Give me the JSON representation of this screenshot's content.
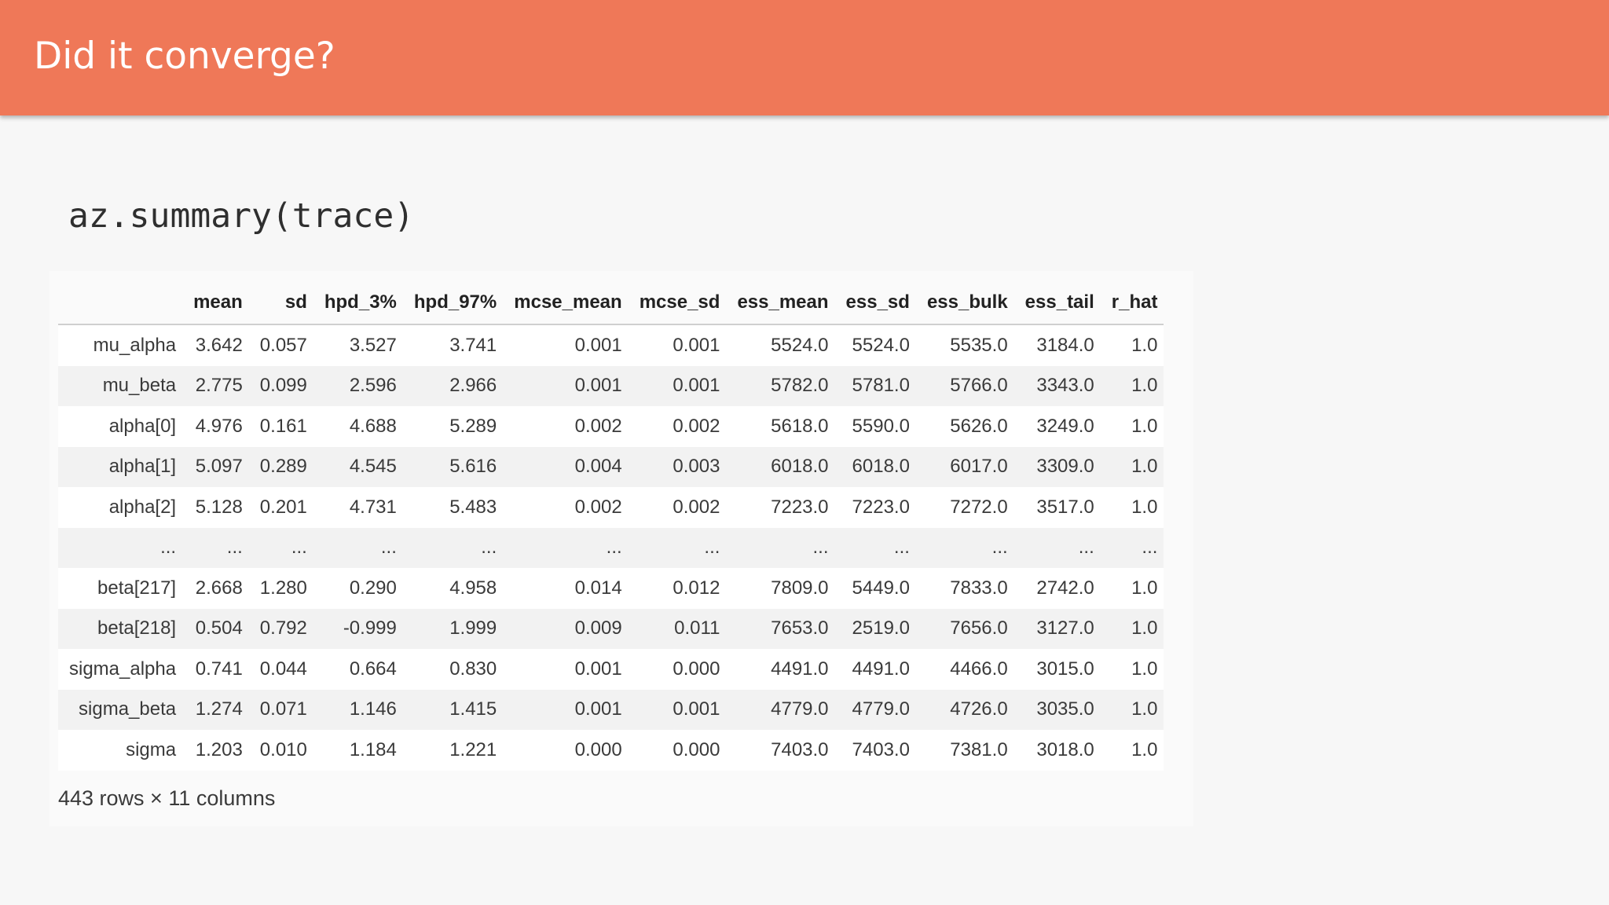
{
  "slide": {
    "title": "Did it converge?",
    "code": "az.summary(trace)",
    "header_color": "#ef7858"
  },
  "table": {
    "columns": [
      "",
      "mean",
      "sd",
      "hpd_3%",
      "hpd_97%",
      "mcse_mean",
      "mcse_sd",
      "ess_mean",
      "ess_sd",
      "ess_bulk",
      "ess_tail",
      "r_hat"
    ],
    "rows": [
      [
        "mu_alpha",
        "3.642",
        "0.057",
        "3.527",
        "3.741",
        "0.001",
        "0.001",
        "5524.0",
        "5524.0",
        "5535.0",
        "3184.0",
        "1.0"
      ],
      [
        "mu_beta",
        "2.775",
        "0.099",
        "2.596",
        "2.966",
        "0.001",
        "0.001",
        "5782.0",
        "5781.0",
        "5766.0",
        "3343.0",
        "1.0"
      ],
      [
        "alpha[0]",
        "4.976",
        "0.161",
        "4.688",
        "5.289",
        "0.002",
        "0.002",
        "5618.0",
        "5590.0",
        "5626.0",
        "3249.0",
        "1.0"
      ],
      [
        "alpha[1]",
        "5.097",
        "0.289",
        "4.545",
        "5.616",
        "0.004",
        "0.003",
        "6018.0",
        "6018.0",
        "6017.0",
        "3309.0",
        "1.0"
      ],
      [
        "alpha[2]",
        "5.128",
        "0.201",
        "4.731",
        "5.483",
        "0.002",
        "0.002",
        "7223.0",
        "7223.0",
        "7272.0",
        "3517.0",
        "1.0"
      ],
      [
        "...",
        "...",
        "...",
        "...",
        "...",
        "...",
        "...",
        "...",
        "...",
        "...",
        "...",
        "..."
      ],
      [
        "beta[217]",
        "2.668",
        "1.280",
        "0.290",
        "4.958",
        "0.014",
        "0.012",
        "7809.0",
        "5449.0",
        "7833.0",
        "2742.0",
        "1.0"
      ],
      [
        "beta[218]",
        "0.504",
        "0.792",
        "-0.999",
        "1.999",
        "0.009",
        "0.011",
        "7653.0",
        "2519.0",
        "7656.0",
        "3127.0",
        "1.0"
      ],
      [
        "sigma_alpha",
        "0.741",
        "0.044",
        "0.664",
        "0.830",
        "0.001",
        "0.000",
        "4491.0",
        "4491.0",
        "4466.0",
        "3015.0",
        "1.0"
      ],
      [
        "sigma_beta",
        "1.274",
        "0.071",
        "1.146",
        "1.415",
        "0.001",
        "0.001",
        "4779.0",
        "4779.0",
        "4726.0",
        "3035.0",
        "1.0"
      ],
      [
        "sigma",
        "1.203",
        "0.010",
        "1.184",
        "1.221",
        "0.000",
        "0.000",
        "7403.0",
        "7403.0",
        "7381.0",
        "3018.0",
        "1.0"
      ]
    ],
    "footer": "443 rows × 11 columns"
  }
}
